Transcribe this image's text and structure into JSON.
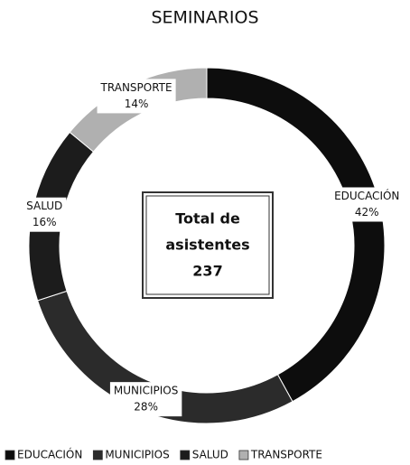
{
  "chart_data": {
    "type": "doughnut",
    "title": "SEMINARIOS",
    "categories": [
      "EDUCACIÓN",
      "MUNICIPIOS",
      "SALUD",
      "TRANSPORTE"
    ],
    "values": [
      42,
      28,
      16,
      14
    ],
    "value_labels": [
      "42%",
      "28%",
      "16%",
      "14%"
    ],
    "colors": [
      "#0d0d0d",
      "#2b2b2b",
      "#1c1c1c",
      "#b0b0b0"
    ],
    "center_text": [
      "Total de",
      "asistentes"
    ],
    "center_value": 237,
    "legend": "bottom"
  }
}
